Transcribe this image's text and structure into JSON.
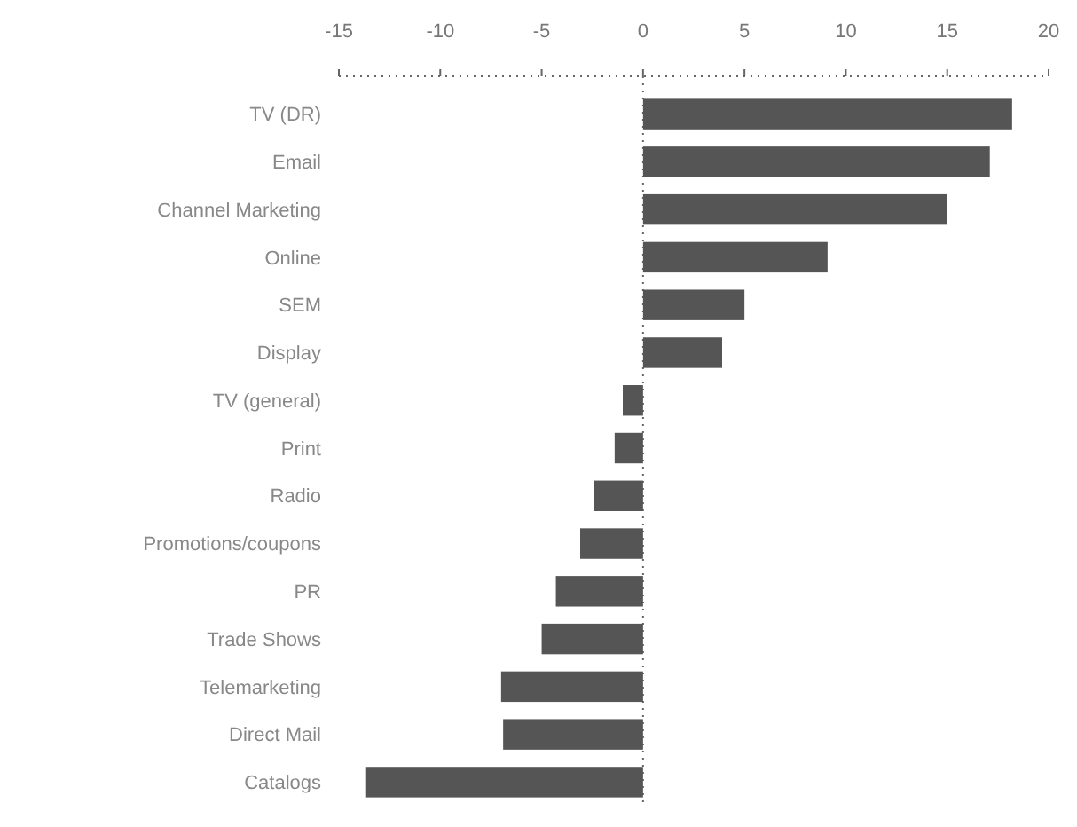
{
  "chart_data": {
    "type": "bar",
    "orientation": "horizontal",
    "categories": [
      "TV (DR)",
      "Email",
      "Channel Marketing",
      "Online",
      "SEM",
      "Display",
      "TV (general)",
      "Print",
      "Radio",
      "Promotions/coupons",
      "PR",
      "Trade Shows",
      "Telemarketing",
      "Direct Mail",
      "Catalogs"
    ],
    "values": [
      18.2,
      17.1,
      15.0,
      9.1,
      5.0,
      3.9,
      -1.0,
      -1.4,
      -2.4,
      -3.1,
      -4.3,
      -5.0,
      -7.0,
      -6.9,
      -13.7
    ],
    "color": "#555555",
    "xlim": [
      -15,
      20
    ],
    "xticks": [
      -15,
      -10,
      -5,
      0,
      5,
      10,
      15,
      20
    ],
    "grid": false,
    "line_style": "dotted",
    "ref_lines": [
      {
        "axis": "x",
        "value": 0,
        "line_style": "dotted"
      }
    ]
  }
}
